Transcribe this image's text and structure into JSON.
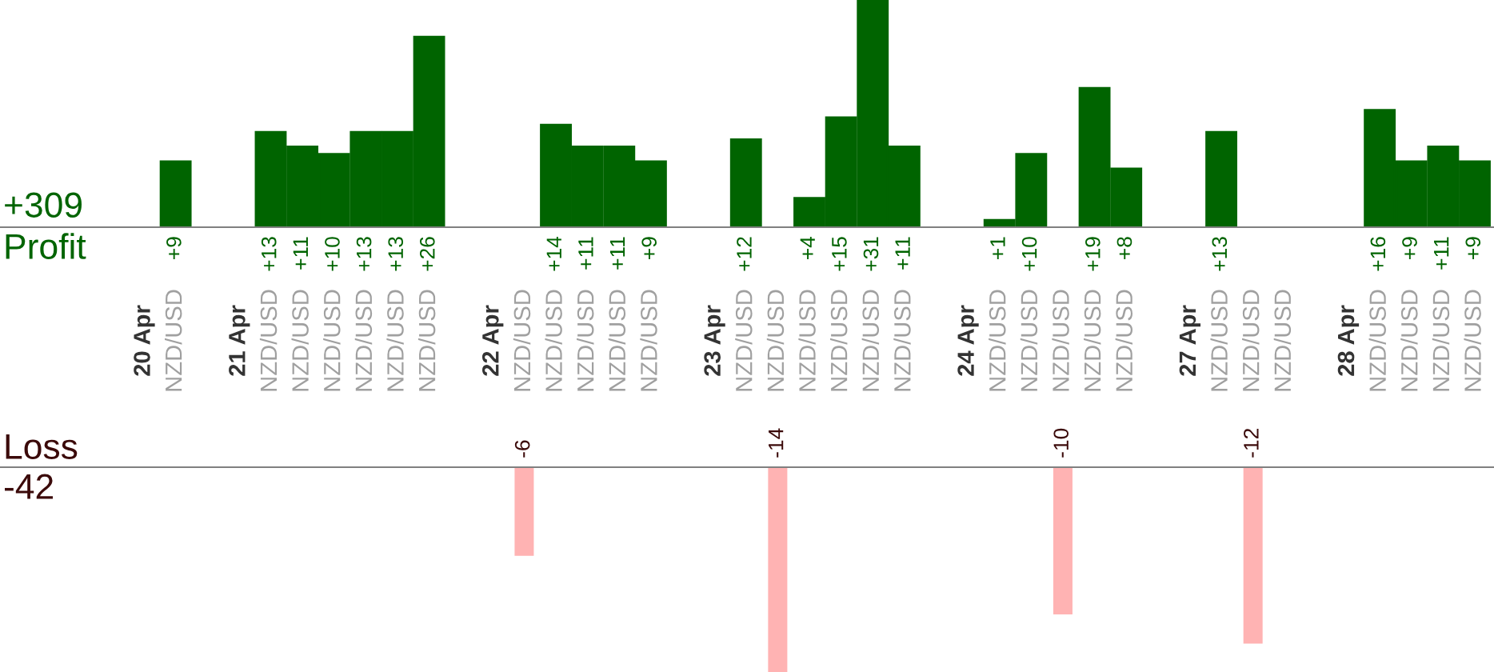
{
  "chart_data": [
    {
      "type": "bar",
      "ylabel": "Profit",
      "annotations": [
        "+309"
      ],
      "categories": [
        "20 Apr",
        "NZD/USD",
        null,
        "21 Apr",
        "NZD/USD",
        "NZD/USD",
        "NZD/USD",
        "NZD/USD",
        "NZD/USD",
        "NZD/USD",
        null,
        "22 Apr",
        "NZD/USD",
        "NZD/USD",
        "NZD/USD",
        "NZD/USD",
        "NZD/USD",
        null,
        "23 Apr",
        "NZD/USD",
        "NZD/USD",
        "NZD/USD",
        "NZD/USD",
        "NZD/USD",
        "NZD/USD",
        null,
        "24 Apr",
        "NZD/USD",
        "NZD/USD",
        "NZD/USD",
        "NZD/USD",
        "NZD/USD",
        null,
        "27 Apr",
        "NZD/USD",
        "NZD/USD",
        "NZD/USD",
        null,
        "28 Apr",
        "NZD/USD",
        "NZD/USD",
        "NZD/USD",
        "NZD/USD"
      ],
      "series": [
        {
          "color": "#006400",
          "values": [
            null,
            9,
            null,
            null,
            13,
            11,
            10,
            13,
            13,
            26,
            null,
            null,
            null,
            14,
            11,
            11,
            9,
            null,
            null,
            12,
            null,
            4,
            15,
            31,
            11,
            null,
            null,
            1,
            10,
            null,
            19,
            8,
            null,
            null,
            13,
            null,
            null,
            null,
            null,
            16,
            9,
            11,
            9
          ],
          "value_labels": [
            null,
            "+9",
            null,
            null,
            "+13",
            "+11",
            "+10",
            "+13",
            "+13",
            "+26",
            null,
            null,
            null,
            "+14",
            "+11",
            "+11",
            "+9",
            null,
            null,
            "+12",
            null,
            "+4",
            "+15",
            "+31",
            "+11",
            null,
            null,
            "+1",
            "+10",
            null,
            "+19",
            "+8",
            null,
            null,
            "+13",
            null,
            null,
            null,
            null,
            "+16",
            "+9",
            "+11",
            "+9"
          ]
        }
      ],
      "ylim": [
        0,
        31
      ],
      "tick_labels": "x"
    },
    {
      "type": "bar",
      "ylabel": "Loss",
      "annotations": [
        "-42"
      ],
      "series": [
        {
          "color": "#ffb3b3",
          "values": [
            null,
            null,
            null,
            null,
            null,
            null,
            null,
            null,
            null,
            null,
            null,
            null,
            -6,
            null,
            null,
            null,
            null,
            null,
            null,
            null,
            -14,
            null,
            null,
            null,
            null,
            null,
            null,
            null,
            null,
            -10,
            null,
            null,
            null,
            null,
            null,
            -12,
            null,
            null,
            null,
            null,
            null,
            null,
            null
          ],
          "value_labels": [
            null,
            null,
            null,
            null,
            null,
            null,
            null,
            null,
            null,
            null,
            null,
            null,
            "-6",
            null,
            null,
            null,
            null,
            null,
            null,
            null,
            "-14",
            null,
            null,
            null,
            null,
            null,
            null,
            null,
            null,
            "-10",
            null,
            null,
            null,
            null,
            null,
            "-12",
            null,
            null,
            null,
            null,
            null,
            null,
            null
          ]
        }
      ],
      "ylim": [
        -14,
        0
      ],
      "tick_labels": false
    }
  ]
}
